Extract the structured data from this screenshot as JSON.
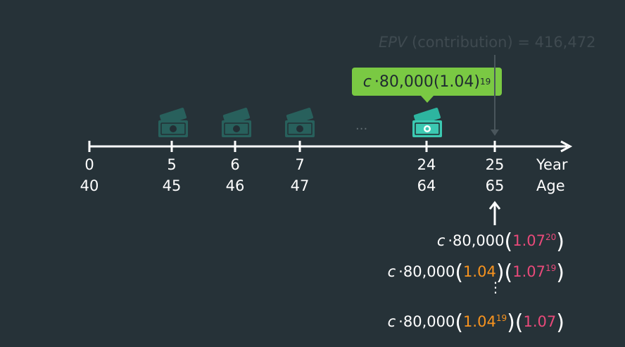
{
  "epv_label": {
    "prefix": "EPV",
    "text": "(contribution) = 416,472"
  },
  "callout": {
    "var": "c",
    "text": "·80,000(1.04)",
    "exp": "19"
  },
  "ellipsis": "...",
  "timeline": {
    "year_label": "Year",
    "age_label": "Age",
    "ticks": [
      {
        "year": "0",
        "age": "40"
      },
      {
        "year": "5",
        "age": "45"
      },
      {
        "year": "6",
        "age": "46"
      },
      {
        "year": "7",
        "age": "47"
      },
      {
        "year": "24",
        "age": "64"
      },
      {
        "year": "25",
        "age": "65"
      }
    ]
  },
  "expressions": [
    {
      "var": "c",
      "base": "·80,000",
      "a": "",
      "a_exp": "",
      "b": "1.07",
      "b_exp": "20"
    },
    {
      "var": "c",
      "base": "·80,000",
      "a": "1.04",
      "a_exp": "",
      "b": "1.07",
      "b_exp": "19"
    },
    {
      "var": "c",
      "base": "·80,000",
      "a": "1.04",
      "a_exp": "19",
      "b": "1.07",
      "b_exp": ""
    }
  ],
  "vertical_ellipsis": "⋮",
  "colors": {
    "background": "#263238",
    "accent_green": "#7ac943",
    "teal_icon": "#2db5a0",
    "pink": "#e94a7a",
    "orange": "#f7931e"
  },
  "icons": [
    "money-icon",
    "money-icon",
    "money-icon",
    "money-icon-highlighted"
  ]
}
